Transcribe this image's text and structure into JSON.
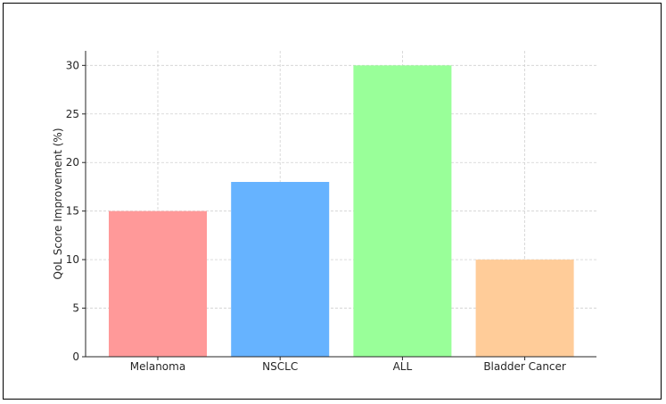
{
  "chart_data": {
    "type": "bar",
    "title": "",
    "xlabel": "",
    "ylabel": "QoL Score Improvement (%)",
    "categories": [
      "Melanoma",
      "NSCLC",
      "ALL",
      "Bladder Cancer"
    ],
    "values": [
      15,
      18,
      30,
      10
    ],
    "colors": [
      "#ff9999",
      "#66b3ff",
      "#99ff99",
      "#ffcc99"
    ],
    "ylim": [
      0,
      31.5
    ],
    "yticks": [
      0,
      5,
      10,
      15,
      20,
      25,
      30
    ],
    "grid": true,
    "legend": "none"
  }
}
